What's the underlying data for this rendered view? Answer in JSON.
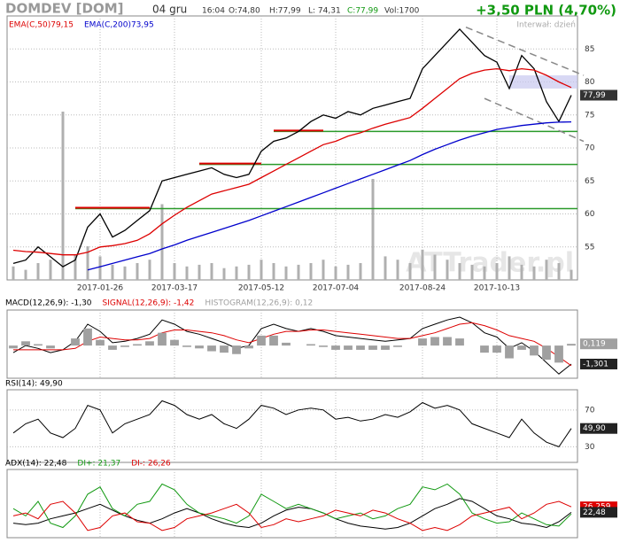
{
  "header": {
    "symbol": "DOMDEV [DOM]",
    "date": "04 gru",
    "time": "16:04",
    "open": "O:74,80",
    "high": "H:77,99",
    "low": "L: 74,31",
    "close": "C:77,99",
    "volume": "Vol:1700",
    "change": "+3,50 PLN (4,70%)",
    "interval": "Interwał: dzień",
    "watermark": "ATTrader.pl"
  },
  "chart_data": [
    {
      "type": "line",
      "categories": [
        null,
        null,
        null,
        null,
        null,
        null,
        null,
        "2017-01-26",
        null,
        null,
        null,
        null,
        null,
        "2017-03-17",
        null,
        null,
        null,
        null,
        null,
        null,
        "2017-05-12",
        null,
        null,
        null,
        null,
        null,
        "2017-07-04",
        null,
        null,
        null,
        null,
        null,
        null,
        "2017-08-24",
        null,
        null,
        null,
        null,
        null,
        "2017-10-13",
        null,
        null,
        null,
        null,
        null,
        null
      ],
      "series": [
        {
          "color": "#000000",
          "values": [
            52.5,
            53,
            55,
            53.5,
            52,
            53,
            58,
            60,
            56.5,
            57.5,
            59,
            60.5,
            65,
            65.5,
            66,
            66.5,
            67,
            66,
            65.5,
            66,
            69.5,
            71,
            71.5,
            72.5,
            74,
            75,
            74.5,
            75.5,
            75,
            76,
            76.5,
            77,
            77.5,
            82,
            84,
            86,
            88,
            86,
            84,
            83,
            79,
            84,
            82,
            77,
            74,
            77.99
          ]
        },
        {
          "name": "EMA(C,50)79,15",
          "color": "#dd0000",
          "values": [
            54.5,
            54.3,
            54.2,
            54,
            53.8,
            53.8,
            54.2,
            55,
            55.2,
            55.5,
            56,
            57,
            58.5,
            59.8,
            61,
            62,
            63,
            63.5,
            64,
            64.5,
            65.5,
            66.5,
            67.5,
            68.5,
            69.5,
            70.5,
            71,
            71.8,
            72.3,
            73,
            73.6,
            74.1,
            74.6,
            76,
            77.5,
            79,
            80.5,
            81.3,
            81.8,
            82,
            81.7,
            82,
            81.8,
            81,
            80,
            79.15
          ]
        },
        {
          "name": "EMA(C,200)73,95",
          "color": "#0000cc",
          "values": [
            null,
            null,
            null,
            null,
            null,
            null,
            51.5,
            52,
            52.5,
            53,
            53.5,
            54,
            54.7,
            55.3,
            56,
            56.6,
            57.2,
            57.8,
            58.4,
            59,
            59.7,
            60.4,
            61.1,
            61.8,
            62.5,
            63.2,
            63.9,
            64.6,
            65.3,
            66,
            66.7,
            67.4,
            68.1,
            69,
            69.8,
            70.5,
            71.2,
            71.8,
            72.3,
            72.8,
            73.1,
            73.4,
            73.6,
            73.8,
            73.9,
            73.95
          ]
        }
      ],
      "volume": [
        8,
        6,
        10,
        12,
        100,
        15,
        20,
        14,
        9,
        8,
        10,
        12,
        45,
        10,
        8,
        9,
        10,
        7,
        8,
        9,
        12,
        10,
        8,
        9,
        10,
        12,
        8,
        9,
        10,
        60,
        14,
        12,
        10,
        18,
        15,
        12,
        10,
        9,
        8,
        10,
        14,
        9,
        8,
        12,
        10,
        6
      ],
      "volume_color": "#b0b0b0",
      "levels": [
        {
          "value": 72.5,
          "from": 21,
          "red_to": 25
        },
        {
          "value": 67.5,
          "from": 15,
          "red_to": 20
        },
        {
          "value": 60.8,
          "from": 5,
          "red_to": 11
        }
      ],
      "band": [
        79,
        81
      ],
      "trend_lines": [
        [
          [
            36.5,
            88.3
          ],
          [
            46,
            81
          ]
        ],
        [
          [
            38,
            77.5
          ],
          [
            46,
            71
          ]
        ]
      ],
      "ylim": [
        50,
        90
      ],
      "yticks": [
        55,
        60,
        65,
        70,
        75,
        80,
        85
      ],
      "last_labels": [
        {
          "value": 77.99,
          "label": "77,99",
          "color": "#333333"
        }
      ]
    },
    {
      "type": "line",
      "series": [
        {
          "name": "MACD(12,26,9): -1,30",
          "color": "#000000",
          "values": [
            -0.5,
            0,
            -0.2,
            -0.5,
            -0.3,
            0.3,
            1.5,
            1.0,
            0.2,
            0.3,
            0.5,
            0.8,
            1.8,
            1.5,
            1.0,
            0.8,
            0.5,
            0.2,
            -0.2,
            0,
            1.2,
            1.5,
            1.2,
            1.0,
            1.2,
            1.0,
            0.7,
            0.6,
            0.5,
            0.4,
            0.3,
            0.4,
            0.5,
            1.2,
            1.5,
            1.8,
            2.0,
            1.6,
            0.9,
            0.6,
            -0.2,
            0.2,
            -0.4,
            -1.2,
            -2.0,
            -1.3
          ]
        },
        {
          "name": "SIGNAL(12,26,9): -1,42",
          "color": "#dd0000",
          "values": [
            -0.3,
            -0.3,
            -0.3,
            -0.3,
            -0.3,
            -0.2,
            0.3,
            0.6,
            0.5,
            0.4,
            0.4,
            0.5,
            0.9,
            1.1,
            1.1,
            1.0,
            0.9,
            0.7,
            0.4,
            0.2,
            0.5,
            0.8,
            1.0,
            1.0,
            1.1,
            1.1,
            1.0,
            0.9,
            0.8,
            0.7,
            0.6,
            0.5,
            0.5,
            0.7,
            0.9,
            1.2,
            1.5,
            1.6,
            1.4,
            1.1,
            0.7,
            0.5,
            0.3,
            -0.2,
            -0.8,
            -1.42
          ]
        },
        {
          "name": "HISTOGRAM(12,26,9): 0,12",
          "color": "#a0a0a0",
          "type": "bar",
          "values": [
            -0.2,
            0.3,
            0.1,
            -0.2,
            0,
            0.5,
            1.2,
            0.4,
            -0.3,
            -0.1,
            0.1,
            0.3,
            0.9,
            0.4,
            -0.1,
            -0.2,
            -0.4,
            -0.5,
            -0.6,
            -0.2,
            0.7,
            0.7,
            0.2,
            0,
            0.1,
            -0.1,
            -0.3,
            -0.3,
            -0.3,
            -0.3,
            -0.3,
            -0.1,
            0,
            0.5,
            0.6,
            0.6,
            0.5,
            0,
            -0.5,
            -0.5,
            -0.9,
            -0.3,
            -0.7,
            -1.0,
            -1.2,
            0.12
          ]
        }
      ],
      "ylim": [
        -2.3,
        2.5
      ],
      "last_labels": [
        {
          "value": 0.119,
          "label": "0,119",
          "color": "#a0a0a0"
        },
        {
          "value": -1.301,
          "label": "-1,301",
          "color": "#222222"
        }
      ]
    },
    {
      "type": "line",
      "series": [
        {
          "name": "RSI(14): 49,90",
          "color": "#000000",
          "values": [
            45,
            55,
            60,
            45,
            40,
            50,
            75,
            70,
            45,
            55,
            60,
            65,
            80,
            75,
            65,
            60,
            65,
            55,
            50,
            60,
            75,
            72,
            65,
            70,
            72,
            70,
            60,
            62,
            58,
            60,
            65,
            62,
            68,
            78,
            72,
            75,
            70,
            55,
            50,
            45,
            40,
            60,
            45,
            35,
            30,
            49.9
          ]
        }
      ],
      "ylim": [
        13,
        92
      ],
      "yticks": [
        30,
        70
      ],
      "last_labels": [
        {
          "value": 49.9,
          "label": "49,90",
          "color": "#222222"
        }
      ]
    },
    {
      "type": "line",
      "series": [
        {
          "name": "ADX(14): 22,48",
          "color": "#000000",
          "values": [
            15,
            14,
            15,
            18,
            20,
            22,
            25,
            28,
            24,
            20,
            17,
            15,
            18,
            22,
            25,
            22,
            18,
            15,
            13,
            12,
            15,
            20,
            24,
            26,
            25,
            22,
            18,
            15,
            13,
            12,
            11,
            12,
            15,
            20,
            25,
            28,
            32,
            30,
            25,
            20,
            18,
            15,
            14,
            12,
            16,
            22.48
          ]
        },
        {
          "name": "DI+: 21,37",
          "color": "#119911",
          "values": [
            25,
            20,
            30,
            15,
            12,
            20,
            35,
            40,
            25,
            20,
            28,
            30,
            42,
            38,
            28,
            22,
            20,
            18,
            15,
            20,
            35,
            30,
            25,
            28,
            25,
            22,
            18,
            20,
            22,
            18,
            20,
            25,
            28,
            40,
            38,
            42,
            35,
            22,
            18,
            15,
            16,
            22,
            18,
            14,
            13,
            21.37
          ]
        },
        {
          "name": "DI-: 26,26",
          "color": "#dd0000",
          "values": [
            20,
            22,
            18,
            28,
            30,
            22,
            10,
            12,
            20,
            22,
            16,
            15,
            10,
            12,
            18,
            20,
            22,
            25,
            28,
            22,
            12,
            14,
            18,
            16,
            18,
            20,
            24,
            22,
            20,
            24,
            22,
            18,
            15,
            10,
            12,
            10,
            14,
            20,
            22,
            24,
            26,
            18,
            22,
            28,
            30,
            26.26
          ]
        }
      ],
      "ylim": [
        5,
        52
      ],
      "last_labels": [
        {
          "value": 26.259,
          "label": "26,259",
          "color": "#dd0000"
        },
        {
          "value": 22.48,
          "label": "22,48",
          "color": "#222222"
        }
      ]
    }
  ]
}
